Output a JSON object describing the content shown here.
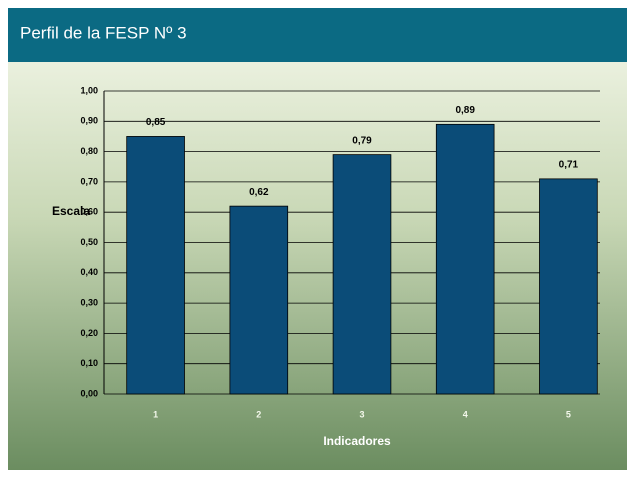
{
  "header": {
    "title": "Perfil de la FESP Nº 3"
  },
  "chart_data": {
    "type": "bar",
    "x_label": "Indicadores",
    "y_label": "Escala",
    "categories": [
      "1",
      "2",
      "3",
      "4",
      "5"
    ],
    "values": [
      0.85,
      0.62,
      0.79,
      0.89,
      0.71
    ],
    "value_labels": [
      "0,85",
      "0,62",
      "0,79",
      "0,89",
      "0,71"
    ],
    "color": "#0b4c78",
    "ylim": [
      0,
      1
    ],
    "yticks": [
      {
        "value": 0,
        "label": "0,00"
      },
      {
        "value": 0.1,
        "label": "0,10"
      },
      {
        "value": 0.2,
        "label": "0,20"
      },
      {
        "value": 0.3,
        "label": "0,30"
      },
      {
        "value": 0.4,
        "label": "0,40"
      },
      {
        "value": 0.5,
        "label": "0,50"
      },
      {
        "value": 0.6,
        "label": "0,60"
      },
      {
        "value": 0.7,
        "label": "0,70"
      },
      {
        "value": 0.8,
        "label": "0,80"
      },
      {
        "value": 0.9,
        "label": "0,90"
      },
      {
        "value": 1,
        "label": "1,00"
      }
    ],
    "grid": true
  }
}
